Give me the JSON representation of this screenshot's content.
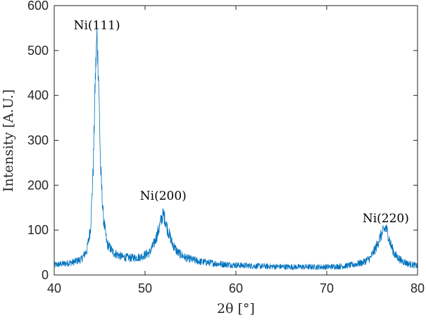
{
  "chart_data": {
    "type": "line",
    "xlabel": "2θ [°]",
    "ylabel": "Intensity [A.U.]",
    "xlim": [
      40,
      80
    ],
    "ylim": [
      0,
      600
    ],
    "xticks": [
      40,
      50,
      60,
      70,
      80
    ],
    "yticks": [
      0,
      100,
      200,
      300,
      400,
      500,
      600
    ],
    "grid": false,
    "legend": "none",
    "series": [
      {
        "color": "#0072BD",
        "x": [
          40,
          41,
          42,
          43,
          43.6,
          44.0,
          44.3,
          44.5,
          44.7,
          44.9,
          45.1,
          45.4,
          45.8,
          46.5,
          47.5,
          48.5,
          49.5,
          50.5,
          51.0,
          51.5,
          51.8,
          52.0,
          52.2,
          52.5,
          53.0,
          53.6,
          54.5,
          56,
          58,
          60,
          62,
          64,
          66,
          68,
          70,
          72,
          73,
          74,
          74.8,
          75.4,
          75.9,
          76.3,
          76.5,
          76.7,
          77.0,
          77.5,
          78.2,
          79,
          80
        ],
        "y": [
          22,
          25,
          28,
          35,
          55,
          105,
          240,
          420,
          535,
          430,
          240,
          130,
          70,
          50,
          40,
          38,
          40,
          50,
          70,
          100,
          125,
          135,
          125,
          100,
          70,
          50,
          38,
          30,
          25,
          22,
          20,
          19,
          18,
          18,
          18,
          20,
          23,
          28,
          38,
          60,
          85,
          100,
          105,
          95,
          70,
          45,
          32,
          25,
          20
        ]
      }
    ],
    "annotations": [
      {
        "text": "Ni(111)",
        "x": 44.7,
        "y": 535
      },
      {
        "text": "Ni(200)",
        "x": 52.0,
        "y": 155
      },
      {
        "text": "Ni(220)",
        "x": 76.5,
        "y": 105
      }
    ]
  }
}
